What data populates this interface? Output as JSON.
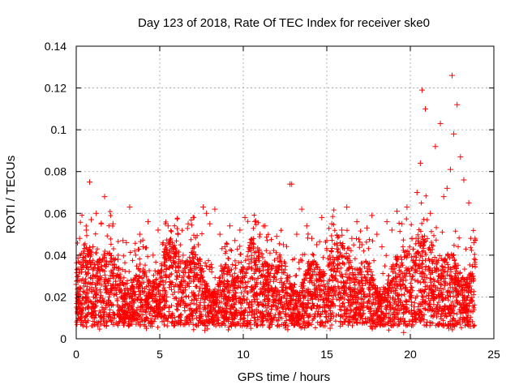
{
  "chart_data": {
    "type": "scatter",
    "title": "Day 123 of 2018, Rate Of TEC Index for receiver ske0",
    "xlabel": "GPS time / hours",
    "ylabel": "ROTI / TECUs",
    "xlim": [
      0,
      25
    ],
    "ylim": [
      0,
      0.14
    ],
    "x_ticks": [
      0,
      5,
      10,
      15,
      20,
      25
    ],
    "x_tick_labels": [
      "0",
      "5",
      "10",
      "15",
      "20",
      "25"
    ],
    "y_ticks": [
      0,
      0.02,
      0.04,
      0.06,
      0.08,
      0.1,
      0.12,
      0.14
    ],
    "y_tick_labels": [
      "0",
      "0.02",
      "0.04",
      "0.06",
      "0.08",
      "0.1",
      "0.12",
      "0.14"
    ],
    "grid": true,
    "marker": "plus",
    "series_color": "#ff0000",
    "series": [
      {
        "name": "ROTI",
        "x": [
          0.0,
          0.2,
          0.4,
          0.6,
          0.8,
          0.9,
          1.0,
          1.2,
          1.5,
          1.7,
          2.0,
          2.2,
          2.5,
          2.8,
          3.0,
          3.2,
          3.5,
          3.8,
          4.0,
          4.3,
          4.6,
          4.9,
          5.2,
          5.5,
          5.8,
          6.1,
          6.4,
          6.7,
          7.0,
          7.3,
          7.6,
          7.8,
          8.0,
          8.3,
          8.6,
          8.9,
          9.2,
          9.5,
          9.8,
          10.1,
          10.4,
          10.7,
          11.0,
          11.3,
          11.6,
          12.0,
          12.4,
          12.8,
          12.9,
          13.2,
          13.5,
          13.8,
          14.1,
          14.4,
          14.7,
          15.0,
          15.3,
          15.6,
          15.9,
          16.2,
          16.5,
          16.8,
          17.1,
          17.4,
          17.7,
          18.0,
          18.3,
          18.6,
          18.9,
          19.2,
          19.5,
          19.8,
          20.1,
          20.4,
          20.6,
          20.7,
          20.9,
          21.2,
          21.5,
          21.8,
          22.0,
          22.2,
          22.4,
          22.5,
          22.6,
          22.8,
          23.0,
          23.2,
          23.5,
          23.8,
          0.1,
          0.3,
          0.7,
          1.1,
          1.8,
          2.6,
          3.4,
          4.2,
          5.0,
          5.9,
          6.8,
          7.7,
          8.5,
          9.4,
          10.2,
          11.1,
          12.0,
          13.4,
          14.3,
          15.2,
          16.1,
          17.0,
          17.9,
          18.8,
          19.6,
          20.3,
          21.0,
          21.7,
          22.3,
          23.0,
          23.6
        ],
        "y": [
          0.026,
          0.048,
          0.039,
          0.052,
          0.075,
          0.057,
          0.044,
          0.06,
          0.055,
          0.068,
          0.041,
          0.055,
          0.038,
          0.047,
          0.046,
          0.063,
          0.042,
          0.05,
          0.044,
          0.056,
          0.04,
          0.052,
          0.046,
          0.054,
          0.043,
          0.05,
          0.04,
          0.055,
          0.058,
          0.045,
          0.063,
          0.06,
          0.055,
          0.062,
          0.05,
          0.044,
          0.054,
          0.047,
          0.052,
          0.058,
          0.046,
          0.056,
          0.05,
          0.054,
          0.041,
          0.049,
          0.045,
          0.074,
          0.074,
          0.05,
          0.062,
          0.054,
          0.048,
          0.045,
          0.058,
          0.047,
          0.055,
          0.043,
          0.052,
          0.063,
          0.048,
          0.056,
          0.045,
          0.053,
          0.059,
          0.05,
          0.044,
          0.056,
          0.052,
          0.061,
          0.055,
          0.063,
          0.048,
          0.07,
          0.084,
          0.119,
          0.11,
          0.06,
          0.092,
          0.103,
          0.068,
          0.072,
          0.081,
          0.126,
          0.098,
          0.112,
          0.087,
          0.076,
          0.065,
          0.046,
          0.012,
          0.008,
          0.015,
          0.01,
          0.006,
          0.014,
          0.009,
          0.005,
          0.012,
          0.007,
          0.011,
          0.004,
          0.013,
          0.008,
          0.006,
          0.01,
          0.009,
          0.007,
          0.012,
          0.005,
          0.008,
          0.011,
          0.006,
          0.01,
          0.003,
          0.012,
          0.008,
          0.007,
          0.005,
          0.01,
          0.006
        ]
      }
    ]
  }
}
